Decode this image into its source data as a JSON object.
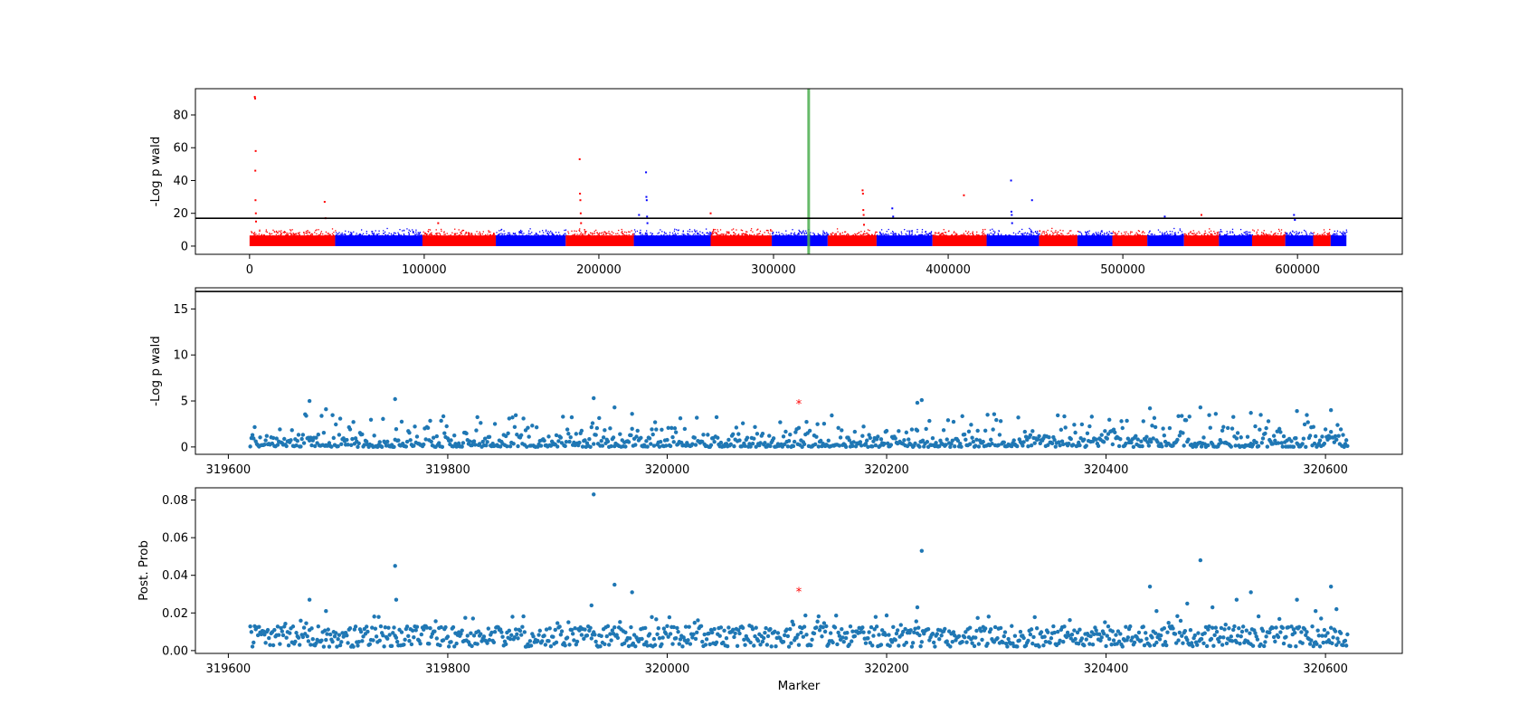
{
  "chart_data": [
    {
      "type": "scatter",
      "title": "",
      "xlabel": "",
      "ylabel": "-Log p wald",
      "xlim": [
        -31000,
        660000
      ],
      "ylim": [
        -5,
        96
      ],
      "x_ticks": [
        0,
        100000,
        200000,
        300000,
        400000,
        500000,
        600000
      ],
      "x_tick_labels": [
        "0",
        "100000",
        "200000",
        "300000",
        "400000",
        "500000",
        "600000"
      ],
      "y_ticks": [
        0,
        20,
        40,
        60,
        80
      ],
      "y_tick_labels": [
        "0",
        "20",
        "40",
        "60",
        "80"
      ],
      "n_markers": 628000,
      "threshold": 17,
      "highlight_marker": 320120,
      "highlight_color": "#4caf50",
      "series_colors": [
        "#ff0000",
        "#0000ff"
      ],
      "chromosome_boundaries": [
        0,
        49000,
        99000,
        141000,
        181000,
        220000,
        264000,
        299000,
        331000,
        359000,
        391000,
        422000,
        452000,
        474000,
        494000,
        514000,
        535000,
        555000,
        574000,
        593000,
        609000,
        619000,
        628000
      ],
      "peaks": [
        {
          "x": 3000,
          "y": 91
        },
        {
          "x": 3200,
          "y": 90
        },
        {
          "x": 3500,
          "y": 58
        },
        {
          "x": 3300,
          "y": 46
        },
        {
          "x": 3400,
          "y": 28
        },
        {
          "x": 3600,
          "y": 20
        },
        {
          "x": 3700,
          "y": 15
        },
        {
          "x": 43000,
          "y": 27
        },
        {
          "x": 43500,
          "y": 17
        },
        {
          "x": 108000,
          "y": 14
        },
        {
          "x": 189000,
          "y": 53
        },
        {
          "x": 189200,
          "y": 32
        },
        {
          "x": 189400,
          "y": 28
        },
        {
          "x": 189600,
          "y": 20
        },
        {
          "x": 189800,
          "y": 14
        },
        {
          "x": 227000,
          "y": 45
        },
        {
          "x": 227200,
          "y": 30
        },
        {
          "x": 227400,
          "y": 28
        },
        {
          "x": 227600,
          "y": 18
        },
        {
          "x": 227800,
          "y": 14
        },
        {
          "x": 223000,
          "y": 19
        },
        {
          "x": 264000,
          "y": 20
        },
        {
          "x": 351000,
          "y": 34
        },
        {
          "x": 351200,
          "y": 32
        },
        {
          "x": 351400,
          "y": 22
        },
        {
          "x": 351600,
          "y": 19
        },
        {
          "x": 351800,
          "y": 13
        },
        {
          "x": 368000,
          "y": 23
        },
        {
          "x": 368500,
          "y": 18
        },
        {
          "x": 409000,
          "y": 31
        },
        {
          "x": 436000,
          "y": 40
        },
        {
          "x": 436200,
          "y": 21
        },
        {
          "x": 436400,
          "y": 19
        },
        {
          "x": 436600,
          "y": 14
        },
        {
          "x": 448000,
          "y": 28
        },
        {
          "x": 524000,
          "y": 18
        },
        {
          "x": 545000,
          "y": 19
        },
        {
          "x": 598000,
          "y": 19
        },
        {
          "x": 598500,
          "y": 16
        }
      ]
    },
    {
      "type": "scatter",
      "title": "",
      "xlabel": "",
      "ylabel": "-Log p wald",
      "xlim": [
        319570,
        320670
      ],
      "ylim": [
        -0.8,
        17.3
      ],
      "x_ticks": [
        319600,
        319800,
        320000,
        320200,
        320400,
        320600
      ],
      "x_tick_labels": [
        "319600",
        "319800",
        "320000",
        "320200",
        "320400",
        "320600"
      ],
      "y_ticks": [
        0,
        5,
        10,
        15
      ],
      "y_tick_labels": [
        "0",
        "5",
        "10",
        "15"
      ],
      "threshold": 16.9,
      "x_range": [
        319620,
        320620
      ],
      "point_color": "#1f77b4",
      "highlight": {
        "x": 320120,
        "y": 4.8,
        "color": "#ff0000"
      },
      "notable_points": [
        {
          "x": 319674,
          "y": 5.0
        },
        {
          "x": 319689,
          "y": 4.1
        },
        {
          "x": 319752,
          "y": 5.2
        },
        {
          "x": 319933,
          "y": 5.3
        },
        {
          "x": 319952,
          "y": 4.3
        },
        {
          "x": 319968,
          "y": 3.6
        },
        {
          "x": 320228,
          "y": 4.8
        },
        {
          "x": 320232,
          "y": 5.1
        },
        {
          "x": 320440,
          "y": 4.2
        },
        {
          "x": 320486,
          "y": 4.3
        },
        {
          "x": 320532,
          "y": 3.7
        },
        {
          "x": 320574,
          "y": 3.9
        },
        {
          "x": 320605,
          "y": 4.0
        }
      ]
    },
    {
      "type": "scatter",
      "title": "",
      "xlabel": "Marker",
      "ylabel": "Post. Prob",
      "xlim": [
        319570,
        320670
      ],
      "ylim": [
        -0.0015,
        0.0865
      ],
      "x_ticks": [
        319600,
        319800,
        320000,
        320200,
        320400,
        320600
      ],
      "x_tick_labels": [
        "319600",
        "319800",
        "320000",
        "320200",
        "320400",
        "320600"
      ],
      "y_ticks": [
        0,
        0.02,
        0.04,
        0.06,
        0.08
      ],
      "y_tick_labels": [
        "0.00",
        "0.02",
        "0.04",
        "0.06",
        "0.08"
      ],
      "x_range": [
        319620,
        320620
      ],
      "point_color": "#1f77b4",
      "highlight": {
        "x": 320120,
        "y": 0.032,
        "color": "#ff0000"
      },
      "notable_points": [
        {
          "x": 319674,
          "y": 0.027
        },
        {
          "x": 319689,
          "y": 0.021
        },
        {
          "x": 319752,
          "y": 0.045
        },
        {
          "x": 319753,
          "y": 0.027
        },
        {
          "x": 319933,
          "y": 0.083
        },
        {
          "x": 319931,
          "y": 0.024
        },
        {
          "x": 319952,
          "y": 0.035
        },
        {
          "x": 319968,
          "y": 0.031
        },
        {
          "x": 320228,
          "y": 0.023
        },
        {
          "x": 320232,
          "y": 0.053
        },
        {
          "x": 320440,
          "y": 0.034
        },
        {
          "x": 320446,
          "y": 0.021
        },
        {
          "x": 320474,
          "y": 0.025
        },
        {
          "x": 320486,
          "y": 0.048
        },
        {
          "x": 320497,
          "y": 0.023
        },
        {
          "x": 320519,
          "y": 0.027
        },
        {
          "x": 320532,
          "y": 0.031
        },
        {
          "x": 320574,
          "y": 0.027
        },
        {
          "x": 320591,
          "y": 0.021
        },
        {
          "x": 320605,
          "y": 0.034
        },
        {
          "x": 320610,
          "y": 0.022
        }
      ]
    }
  ]
}
